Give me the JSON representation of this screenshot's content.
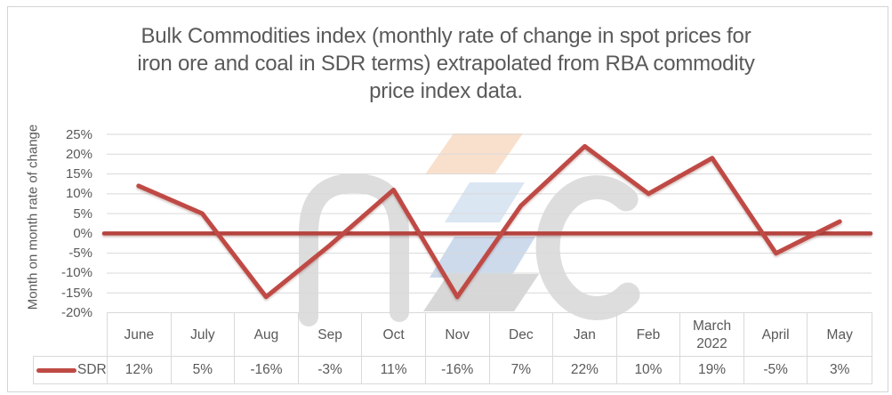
{
  "title": {
    "lines": [
      "Bulk Commodities index (monthly rate of change in spot prices for",
      "iron ore and coal in SDR terms) extrapolated from RBA commodity",
      "price index data."
    ]
  },
  "y_axis": {
    "label": "Month on month rate of change",
    "tick_labels": [
      "25%",
      "20%",
      "15%",
      "10%",
      "5%",
      "0%",
      "-5%",
      "-10%",
      "-15%",
      "-20%"
    ]
  },
  "chart_data": {
    "type": "line",
    "title": "Bulk Commodities index (monthly rate of change in spot prices for iron ore and coal in SDR terms) extrapolated from RBA commodity price index data.",
    "xlabel": "",
    "ylabel": "Month on month rate of change",
    "categories": [
      "June",
      "July",
      "Aug",
      "Sep",
      "Oct",
      "Nov",
      "Dec",
      "Jan",
      "Feb",
      "March 2022",
      "April",
      "May"
    ],
    "series": [
      {
        "name": "SDR",
        "values": [
          12,
          5,
          -16,
          -3,
          11,
          -16,
          7,
          22,
          10,
          19,
          -5,
          3
        ],
        "value_labels": [
          "12%",
          "5%",
          "-16%",
          "-3%",
          "11%",
          "-16%",
          "7%",
          "22%",
          "10%",
          "19%",
          "-5%",
          "3%"
        ],
        "color": "#bf4a45"
      }
    ],
    "ylim": [
      -20,
      25
    ],
    "ytick_step": 5,
    "grid": true,
    "zero_line": {
      "show": true,
      "color": "#b5433e",
      "width": 4.5
    },
    "legend_position": "bottom-left",
    "data_table_shown": true
  },
  "watermark": {
    "name": "nzc-logo",
    "letter_color": "#d9d9d9",
    "band_orange": "#f9e0cd",
    "band_blue_light": "#dbe6f3",
    "band_blue": "#ccdaec",
    "band_gray": "#d7d7d7"
  },
  "colors": {
    "text": "#595959",
    "grid": "#d9d9d9",
    "axis": "#c9c9c9",
    "table_border": "#d9d9d9",
    "background": "#ffffff",
    "frame_border": "#d4d4d4"
  }
}
